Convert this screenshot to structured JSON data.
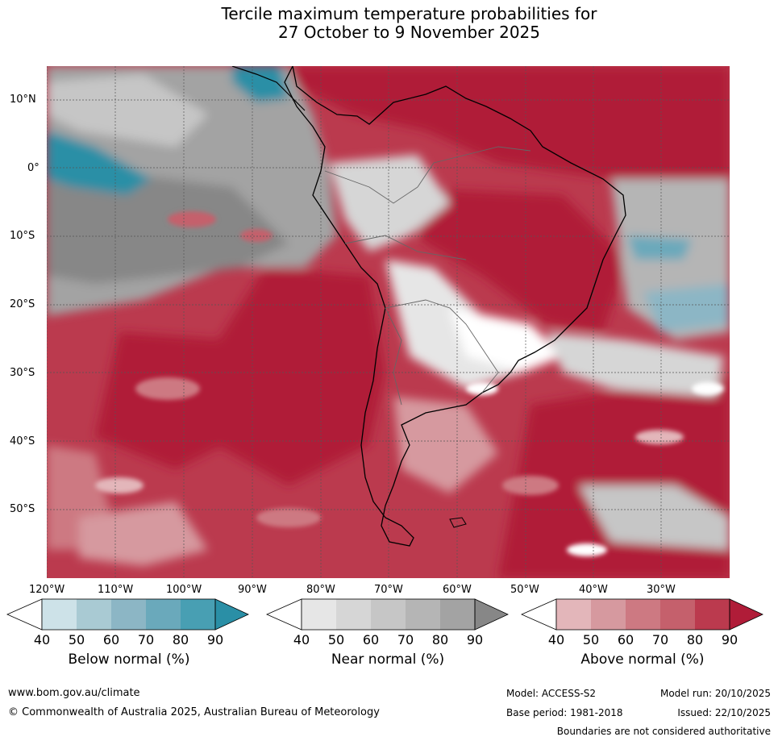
{
  "title": {
    "line1": "Tercile maximum temperature probabilities for",
    "line2": "27 October to 9 November 2025"
  },
  "map": {
    "lat_labels": [
      "10°N",
      "0°",
      "10°S",
      "20°S",
      "30°S",
      "40°S",
      "50°S"
    ],
    "lon_labels": [
      "120°W",
      "110°W",
      "100°W",
      "90°W",
      "80°W",
      "70°W",
      "60°W",
      "50°W",
      "40°W",
      "30°W"
    ]
  },
  "legend": {
    "ticks": [
      "40",
      "50",
      "60",
      "70",
      "80",
      "90"
    ],
    "below": {
      "title": "Below normal (%)",
      "colors": [
        "#ffffff",
        "#cde2e8",
        "#a9cad3",
        "#8cb6c5",
        "#6aa9bb",
        "#489fb3",
        "#2a8fa6"
      ]
    },
    "near": {
      "title": "Near normal (%)",
      "colors": [
        "#ffffff",
        "#e6e6e6",
        "#d6d6d6",
        "#c6c6c6",
        "#b5b5b5",
        "#a3a3a3",
        "#878787"
      ]
    },
    "above": {
      "title": "Above normal (%)",
      "colors": [
        "#ffffff",
        "#e3b6ba",
        "#d6999f",
        "#cd7982",
        "#c5606c",
        "#bb3a4e",
        "#b01c38"
      ]
    }
  },
  "footer": {
    "website": "www.bom.gov.au/climate",
    "copyright": "© Commonwealth of Australia 2025, Australian Bureau of Meteorology",
    "model": "Model: ACCESS-S2",
    "base_period": "Base period: 1981-2018",
    "model_run": "Model run: 20/10/2025",
    "issued": "Issued: 22/10/2025",
    "boundaries_note": "Boundaries are not considered authoritative"
  }
}
